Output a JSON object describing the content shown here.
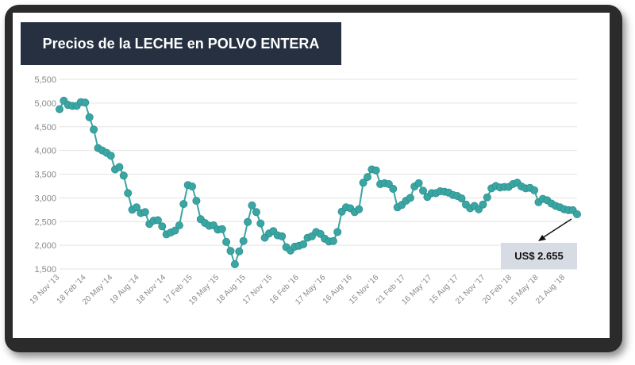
{
  "chart_data": {
    "type": "line",
    "title": "Precios de la LECHE en POLVO ENTERA",
    "xlabel": "",
    "ylabel": "",
    "ylim": [
      1500,
      5500
    ],
    "yticks": [
      1500,
      2000,
      2500,
      3000,
      3500,
      4000,
      4500,
      5000,
      5500
    ],
    "ytick_labels": [
      "1,500",
      "2,000",
      "2,500",
      "3,000",
      "3,500",
      "4,000",
      "4,500",
      "5,000",
      "5,500"
    ],
    "xtick_labels": [
      "19 Nov '13",
      "18 Feb '14",
      "20 May '14",
      "19 Aug '14",
      "18 Nov '14",
      "17 Feb '15",
      "19 May '15",
      "18 Aug '15",
      "17 Nov '15",
      "16 Feb '16",
      "17 May '16",
      "16 Aug '16",
      "15 Nov '16",
      "21 Feb '17",
      "16 May '17",
      "15 Aug '17",
      "21 Nov '17",
      "20 Feb '18",
      "15 May '18",
      "21 Aug '18"
    ],
    "grid": true,
    "color": "#3aa6a3",
    "series": [
      {
        "values": [
          4870,
          5050,
          4960,
          4940,
          4940,
          5020,
          5010,
          4700,
          4440,
          4050,
          4000,
          3950,
          3890,
          3600,
          3650,
          3470,
          3100,
          2750,
          2800,
          2680,
          2700,
          2450,
          2520,
          2530,
          2400,
          2230,
          2270,
          2310,
          2420,
          2870,
          3270,
          3240,
          2940,
          2550,
          2470,
          2410,
          2420,
          2330,
          2340,
          2070,
          1880,
          1600,
          1870,
          2090,
          2490,
          2840,
          2700,
          2460,
          2160,
          2250,
          2300,
          2210,
          2190,
          1960,
          1890,
          1970,
          1990,
          2020,
          2160,
          2190,
          2280,
          2240,
          2140,
          2080,
          2090,
          2280,
          2710,
          2800,
          2780,
          2700,
          2760,
          3320,
          3440,
          3600,
          3580,
          3290,
          3310,
          3290,
          3190,
          2800,
          2850,
          2940,
          3000,
          3240,
          3310,
          3150,
          3020,
          3100,
          3100,
          3140,
          3130,
          3110,
          3060,
          3040,
          2990,
          2860,
          2780,
          2830,
          2760,
          2860,
          3010,
          3200,
          3250,
          3220,
          3230,
          3230,
          3290,
          3320,
          3240,
          3200,
          3210,
          3160,
          2910,
          2980,
          2950,
          2880,
          2830,
          2800,
          2760,
          2740,
          2740,
          2655
        ]
      }
    ],
    "annotation": "US$ 2.655"
  }
}
